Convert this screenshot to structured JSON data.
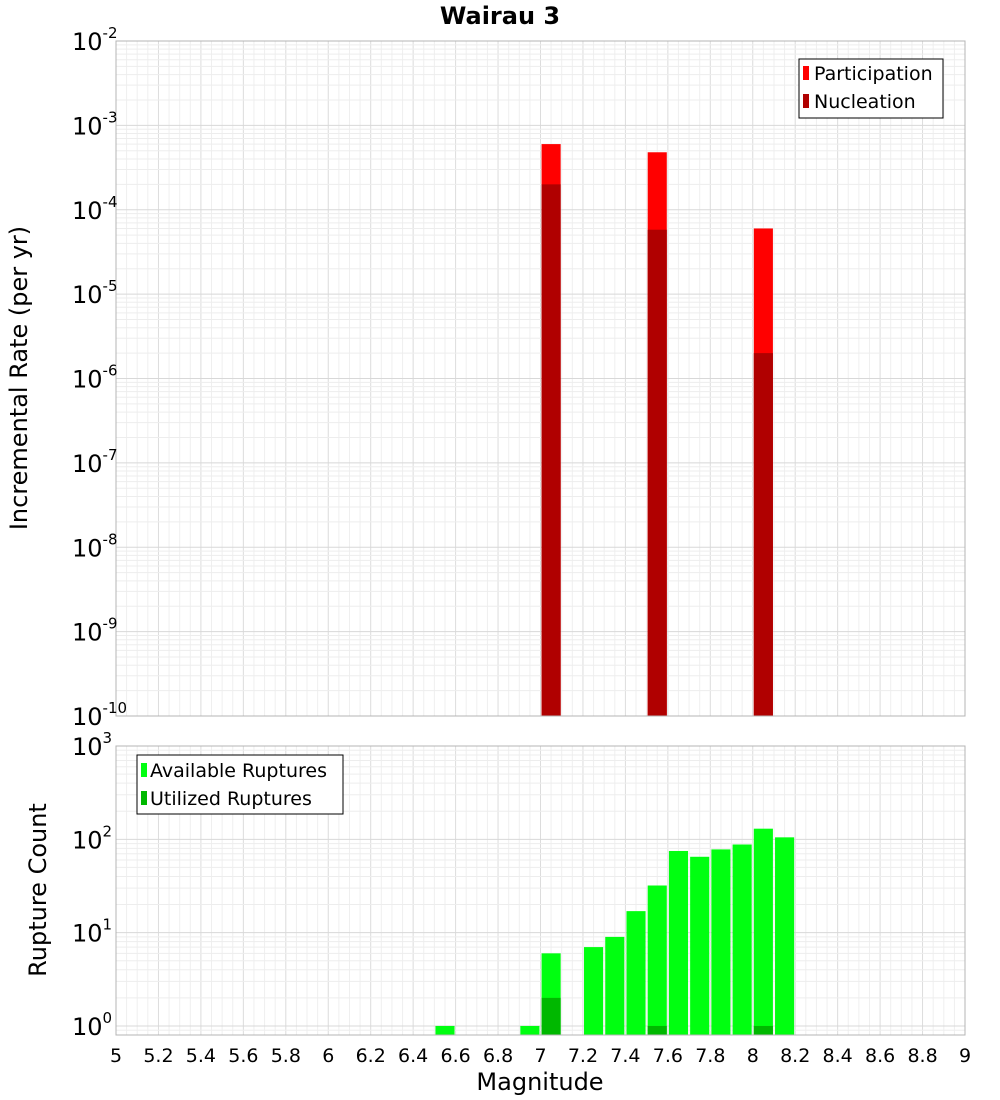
{
  "chart_data": [
    {
      "type": "bar",
      "title": "Wairau 3",
      "xlabel": "",
      "ylabel": "Incremental Rate (per yr)",
      "xlim": [
        5,
        9
      ],
      "ylim": [
        1e-10,
        0.01
      ],
      "yscale": "log",
      "y_tick_exponents": [
        -10,
        -9,
        -8,
        -7,
        -6,
        -5,
        -4,
        -3,
        -2
      ],
      "grid": true,
      "legend_position": "top-right",
      "colors": {
        "participation": "#ff0000",
        "nucleation": "#b00000"
      },
      "series": [
        {
          "name": "Participation",
          "x": [
            7.05,
            7.55,
            8.05
          ],
          "values": [
            0.0006,
            0.00048,
            6e-05
          ]
        },
        {
          "name": "Nucleation",
          "x": [
            7.05,
            7.55,
            8.05
          ],
          "values": [
            0.0002,
            5.8e-05,
            2e-06
          ]
        }
      ]
    },
    {
      "type": "bar",
      "title": "",
      "xlabel": "Magnitude",
      "ylabel": "Rupture Count",
      "xlim": [
        5,
        9
      ],
      "ylim": [
        0.8,
        1000
      ],
      "yscale": "log",
      "y_tick_exponents": [
        0,
        1,
        2,
        3
      ],
      "x_ticks": [
        "5",
        "5.2",
        "5.4",
        "5.6",
        "5.8",
        "6",
        "6.2",
        "6.4",
        "6.6",
        "6.8",
        "7",
        "7.2",
        "7.4",
        "7.6",
        "7.8",
        "8",
        "8.2",
        "8.4",
        "8.6",
        "8.8",
        "9"
      ],
      "grid": true,
      "legend_position": "top-left",
      "colors": {
        "available": "#00ff10",
        "utilized": "#00b800"
      },
      "series": [
        {
          "name": "Available Ruptures",
          "x": [
            6.55,
            6.95,
            7.05,
            7.25,
            7.35,
            7.45,
            7.55,
            7.65,
            7.75,
            7.85,
            7.95,
            8.05,
            8.15
          ],
          "values": [
            1,
            1,
            6,
            7,
            9,
            17,
            32,
            75,
            65,
            78,
            88,
            130,
            105
          ]
        },
        {
          "name": "Utilized Ruptures",
          "x": [
            7.05,
            7.55,
            8.05
          ],
          "values": [
            2,
            1,
            1
          ]
        }
      ]
    }
  ]
}
